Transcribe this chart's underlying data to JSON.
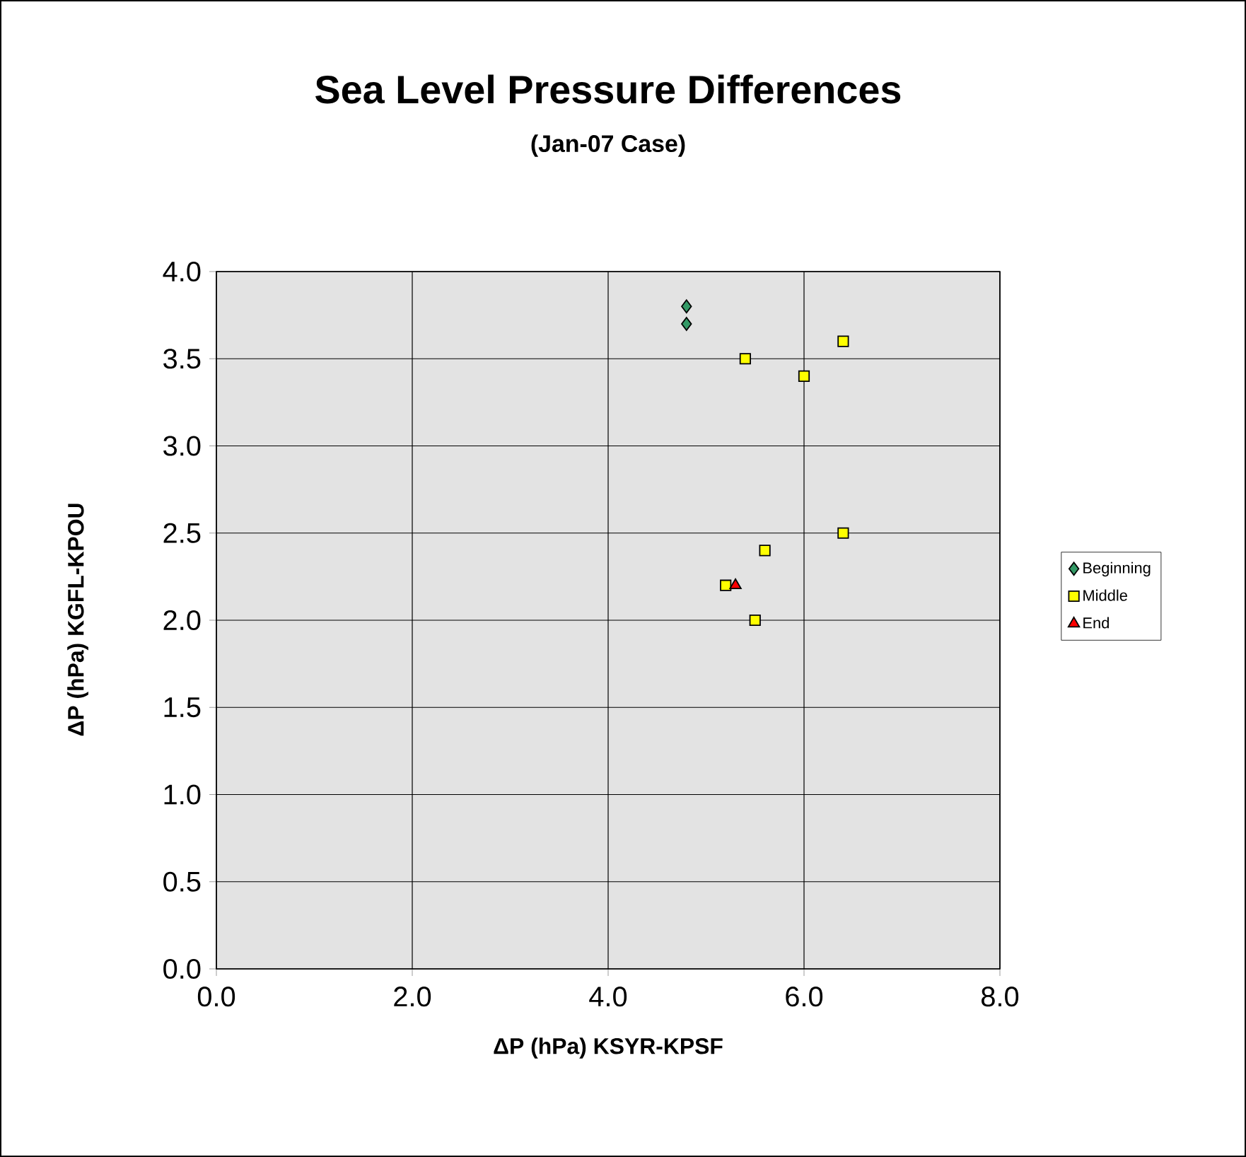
{
  "chart_data": {
    "type": "scatter",
    "title": "Sea Level Pressure Differences",
    "subtitle": "(Jan-07 Case)",
    "xlabel": "ΔP (hPa) KSYR-KPSF",
    "ylabel": "ΔP (hPa) KGFL-KPOU",
    "xlim": [
      0,
      8
    ],
    "ylim": [
      0,
      4
    ],
    "xticks": [
      {
        "value": 0,
        "label": "0.0"
      },
      {
        "value": 2,
        "label": "2.0"
      },
      {
        "value": 4,
        "label": "4.0"
      },
      {
        "value": 6,
        "label": "6.0"
      },
      {
        "value": 8,
        "label": "8.0"
      }
    ],
    "yticks": [
      {
        "value": 0,
        "label": "0.0"
      },
      {
        "value": 0.5,
        "label": "0.5"
      },
      {
        "value": 1,
        "label": "1.0"
      },
      {
        "value": 1.5,
        "label": "1.5"
      },
      {
        "value": 2,
        "label": "2.0"
      },
      {
        "value": 2.5,
        "label": "2.5"
      },
      {
        "value": 3,
        "label": "3.0"
      },
      {
        "value": 3.5,
        "label": "3.5"
      },
      {
        "value": 4,
        "label": "4.0"
      }
    ],
    "grid": true,
    "legend": "right",
    "series": [
      {
        "name": "Beginning",
        "color": "#339966",
        "marker": "diamond",
        "x": [
          4.8,
          4.8
        ],
        "values": [
          3.8,
          3.7
        ]
      },
      {
        "name": "Middle",
        "color": "#ffff00",
        "marker": "square",
        "x": [
          5.4,
          6.0,
          6.4,
          5.6,
          6.4,
          5.2,
          5.5
        ],
        "values": [
          3.5,
          3.4,
          3.6,
          2.4,
          2.5,
          2.2,
          2.0
        ]
      },
      {
        "name": "End",
        "color": "#ff0000",
        "marker": "triangle",
        "x": [
          5.3
        ],
        "values": [
          2.2
        ]
      }
    ]
  }
}
